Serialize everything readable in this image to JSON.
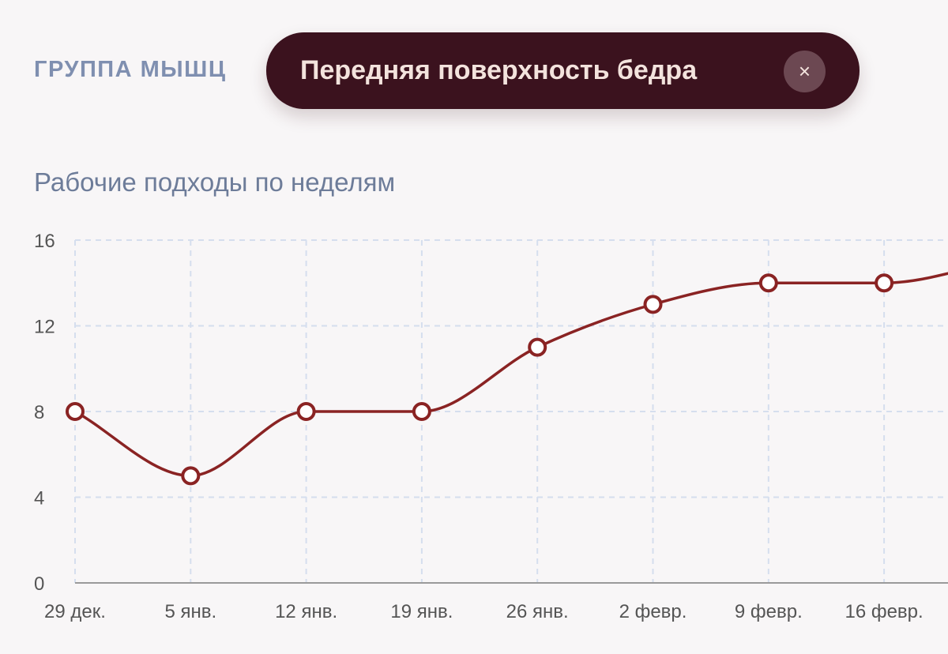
{
  "filter": {
    "label": "ГРУППА МЫШЦ",
    "selected": "Передняя поверхность бедра",
    "clear_glyph": "×",
    "clear_icon": "close-icon"
  },
  "colors": {
    "background": "#f8f6f7",
    "chip_bg": "#3b121e",
    "chip_text": "#f3e3dd",
    "line": "#8a2323",
    "point_fill": "#ffffff",
    "grid": "#d5deee",
    "label_muted": "#7f8fb0",
    "axis": "#9a9a9a"
  },
  "chart_data": {
    "type": "line",
    "title": "Рабочие подходы по неделям",
    "xlabel": "",
    "ylabel": "",
    "ylim": [
      0,
      16
    ],
    "yticks": [
      0,
      4,
      8,
      12,
      16
    ],
    "grid": true,
    "categories": [
      "29 дек.",
      "5 янв.",
      "12 янв.",
      "19 янв.",
      "26 янв.",
      "2 февр.",
      "9 февр.",
      "16 февр.",
      ""
    ],
    "series": [
      {
        "values": [
          8,
          5,
          8,
          8,
          11,
          13,
          14,
          14,
          15
        ]
      }
    ]
  }
}
